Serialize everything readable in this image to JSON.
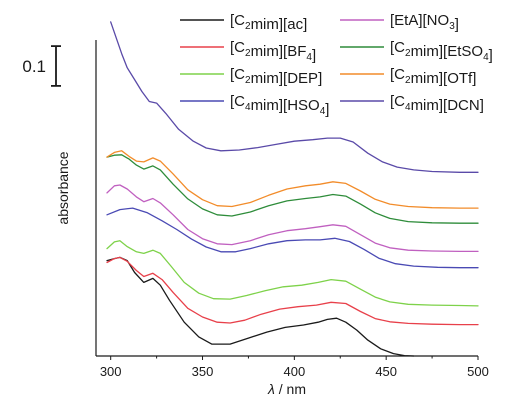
{
  "chart_data": {
    "type": "line",
    "title": "",
    "xlabel": {
      "symbol": "λ",
      "unit": " / nm"
    },
    "ylabel": "absorbance",
    "xlim": [
      292,
      500
    ],
    "xticks": [
      "300",
      "350",
      "400",
      "450",
      "500"
    ],
    "xtick_values": [
      300,
      350,
      400,
      450,
      500
    ],
    "ylim": [
      0,
      0.87
    ],
    "yticks": [],
    "grid": false,
    "legend_position": "top-right",
    "scale_bar": {
      "label": "0.1",
      "value": 0.1
    },
    "series": [
      {
        "name": [
          {
            "t": "[C"
          },
          {
            "t": "2",
            "sub": true
          },
          {
            "t": "mim][ac]"
          }
        ],
        "color": "#1a1a1a",
        "points": [
          [
            298,
            0.24
          ],
          [
            302,
            0.245
          ],
          [
            305,
            0.248
          ],
          [
            309,
            0.24
          ],
          [
            313,
            0.21
          ],
          [
            318,
            0.185
          ],
          [
            323,
            0.195
          ],
          [
            327,
            0.178
          ],
          [
            332,
            0.14
          ],
          [
            340,
            0.085
          ],
          [
            348,
            0.048
          ],
          [
            355,
            0.03
          ],
          [
            365,
            0.03
          ],
          [
            375,
            0.045
          ],
          [
            385,
            0.06
          ],
          [
            395,
            0.072
          ],
          [
            405,
            0.078
          ],
          [
            413,
            0.085
          ],
          [
            418,
            0.092
          ],
          [
            423,
            0.095
          ],
          [
            428,
            0.085
          ],
          [
            434,
            0.065
          ],
          [
            440,
            0.04
          ],
          [
            447,
            0.018
          ],
          [
            454,
            0.006
          ],
          [
            460,
            0.001
          ],
          [
            465,
            0.0
          ]
        ]
      },
      {
        "name": [
          {
            "t": "[C"
          },
          {
            "t": "2",
            "sub": true
          },
          {
            "t": "mim][BF"
          },
          {
            "t": "4",
            "sub": true
          },
          {
            "t": "]"
          }
        ],
        "color": "#e8404a",
        "points": [
          [
            298,
            0.235
          ],
          [
            302,
            0.245
          ],
          [
            305,
            0.248
          ],
          [
            309,
            0.238
          ],
          [
            314,
            0.215
          ],
          [
            318,
            0.2
          ],
          [
            323,
            0.208
          ],
          [
            328,
            0.192
          ],
          [
            334,
            0.16
          ],
          [
            342,
            0.12
          ],
          [
            350,
            0.098
          ],
          [
            358,
            0.085
          ],
          [
            365,
            0.083
          ],
          [
            373,
            0.09
          ],
          [
            382,
            0.105
          ],
          [
            392,
            0.118
          ],
          [
            402,
            0.124
          ],
          [
            412,
            0.128
          ],
          [
            420,
            0.135
          ],
          [
            428,
            0.132
          ],
          [
            436,
            0.112
          ],
          [
            444,
            0.094
          ],
          [
            452,
            0.086
          ],
          [
            462,
            0.082
          ],
          [
            475,
            0.08
          ],
          [
            490,
            0.079
          ],
          [
            500,
            0.079
          ]
        ]
      },
      {
        "name": [
          {
            "t": "[C"
          },
          {
            "t": "2",
            "sub": true
          },
          {
            "t": "mim][DEP]"
          }
        ],
        "color": "#7ed24a",
        "points": [
          [
            298,
            0.27
          ],
          [
            302,
            0.287
          ],
          [
            305,
            0.29
          ],
          [
            309,
            0.275
          ],
          [
            314,
            0.262
          ],
          [
            318,
            0.258
          ],
          [
            323,
            0.266
          ],
          [
            327,
            0.258
          ],
          [
            333,
            0.225
          ],
          [
            340,
            0.185
          ],
          [
            348,
            0.158
          ],
          [
            356,
            0.144
          ],
          [
            365,
            0.143
          ],
          [
            374,
            0.152
          ],
          [
            384,
            0.164
          ],
          [
            394,
            0.174
          ],
          [
            404,
            0.178
          ],
          [
            413,
            0.185
          ],
          [
            420,
            0.192
          ],
          [
            428,
            0.188
          ],
          [
            436,
            0.168
          ],
          [
            444,
            0.148
          ],
          [
            452,
            0.136
          ],
          [
            462,
            0.13
          ],
          [
            475,
            0.128
          ],
          [
            490,
            0.127
          ],
          [
            500,
            0.126
          ]
        ]
      },
      {
        "name": [
          {
            "t": "[C"
          },
          {
            "t": "4",
            "sub": true
          },
          {
            "t": "mim][HSO"
          },
          {
            "t": "4",
            "sub": true
          },
          {
            "t": "]"
          }
        ],
        "color": "#4a4ab4",
        "points": [
          [
            298,
            0.355
          ],
          [
            305,
            0.368
          ],
          [
            312,
            0.372
          ],
          [
            320,
            0.36
          ],
          [
            328,
            0.34
          ],
          [
            336,
            0.318
          ],
          [
            344,
            0.294
          ],
          [
            352,
            0.274
          ],
          [
            360,
            0.262
          ],
          [
            368,
            0.262
          ],
          [
            376,
            0.27
          ],
          [
            386,
            0.282
          ],
          [
            396,
            0.29
          ],
          [
            406,
            0.292
          ],
          [
            414,
            0.292
          ],
          [
            422,
            0.296
          ],
          [
            430,
            0.288
          ],
          [
            438,
            0.268
          ],
          [
            446,
            0.246
          ],
          [
            455,
            0.232
          ],
          [
            465,
            0.226
          ],
          [
            478,
            0.223
          ],
          [
            490,
            0.222
          ],
          [
            500,
            0.222
          ]
        ]
      },
      {
        "name": [
          {
            "t": "[EtA][NO"
          },
          {
            "t": "3",
            "sub": true
          },
          {
            "t": "]"
          }
        ],
        "color": "#c060c0",
        "points": [
          [
            298,
            0.41
          ],
          [
            302,
            0.428
          ],
          [
            305,
            0.43
          ],
          [
            309,
            0.42
          ],
          [
            314,
            0.4
          ],
          [
            318,
            0.388
          ],
          [
            323,
            0.396
          ],
          [
            327,
            0.385
          ],
          [
            334,
            0.355
          ],
          [
            342,
            0.318
          ],
          [
            350,
            0.295
          ],
          [
            358,
            0.282
          ],
          [
            366,
            0.28
          ],
          [
            376,
            0.29
          ],
          [
            386,
            0.305
          ],
          [
            396,
            0.315
          ],
          [
            406,
            0.32
          ],
          [
            414,
            0.325
          ],
          [
            421,
            0.33
          ],
          [
            428,
            0.326
          ],
          [
            436,
            0.305
          ],
          [
            444,
            0.284
          ],
          [
            452,
            0.272
          ],
          [
            462,
            0.266
          ],
          [
            475,
            0.264
          ],
          [
            490,
            0.263
          ],
          [
            500,
            0.263
          ]
        ]
      },
      {
        "name": [
          {
            "t": "[C"
          },
          {
            "t": "2",
            "sub": true
          },
          {
            "t": "mim][EtSO"
          },
          {
            "t": "4",
            "sub": true
          },
          {
            "t": "]"
          }
        ],
        "color": "#2e8c3a",
        "points": [
          [
            298,
            0.5
          ],
          [
            302,
            0.505
          ],
          [
            306,
            0.506
          ],
          [
            310,
            0.495
          ],
          [
            314,
            0.48
          ],
          [
            318,
            0.47
          ],
          [
            323,
            0.478
          ],
          [
            327,
            0.468
          ],
          [
            334,
            0.432
          ],
          [
            342,
            0.395
          ],
          [
            350,
            0.37
          ],
          [
            358,
            0.355
          ],
          [
            366,
            0.352
          ],
          [
            376,
            0.362
          ],
          [
            386,
            0.378
          ],
          [
            396,
            0.39
          ],
          [
            406,
            0.396
          ],
          [
            414,
            0.4
          ],
          [
            421,
            0.406
          ],
          [
            428,
            0.402
          ],
          [
            436,
            0.382
          ],
          [
            444,
            0.36
          ],
          [
            452,
            0.346
          ],
          [
            462,
            0.338
          ],
          [
            475,
            0.335
          ],
          [
            490,
            0.334
          ],
          [
            500,
            0.334
          ]
        ]
      },
      {
        "name": [
          {
            "t": "[C"
          },
          {
            "t": "2",
            "sub": true
          },
          {
            "t": "mim][OTf]"
          }
        ],
        "color": "#f28c2a",
        "points": [
          [
            298,
            0.5
          ],
          [
            302,
            0.512
          ],
          [
            306,
            0.516
          ],
          [
            310,
            0.502
          ],
          [
            314,
            0.49
          ],
          [
            318,
            0.488
          ],
          [
            323,
            0.498
          ],
          [
            327,
            0.49
          ],
          [
            334,
            0.458
          ],
          [
            342,
            0.418
          ],
          [
            350,
            0.393
          ],
          [
            358,
            0.378
          ],
          [
            366,
            0.376
          ],
          [
            376,
            0.386
          ],
          [
            386,
            0.404
          ],
          [
            396,
            0.42
          ],
          [
            406,
            0.428
          ],
          [
            414,
            0.432
          ],
          [
            421,
            0.438
          ],
          [
            428,
            0.434
          ],
          [
            436,
            0.415
          ],
          [
            444,
            0.394
          ],
          [
            452,
            0.382
          ],
          [
            462,
            0.376
          ],
          [
            475,
            0.373
          ],
          [
            490,
            0.372
          ],
          [
            500,
            0.372
          ]
        ]
      },
      {
        "name": [
          {
            "t": "[C"
          },
          {
            "t": "4",
            "sub": true
          },
          {
            "t": "mim][DCN]"
          }
        ],
        "color": "#5a4aa8",
        "points": [
          [
            300,
            0.84
          ],
          [
            303,
            0.8
          ],
          [
            306,
            0.76
          ],
          [
            309,
            0.725
          ],
          [
            313,
            0.695
          ],
          [
            317,
            0.665
          ],
          [
            321,
            0.64
          ],
          [
            325,
            0.636
          ],
          [
            330,
            0.61
          ],
          [
            337,
            0.57
          ],
          [
            345,
            0.54
          ],
          [
            352,
            0.523
          ],
          [
            360,
            0.516
          ],
          [
            370,
            0.518
          ],
          [
            380,
            0.524
          ],
          [
            390,
            0.532
          ],
          [
            400,
            0.54
          ],
          [
            410,
            0.544
          ],
          [
            418,
            0.548
          ],
          [
            425,
            0.548
          ],
          [
            432,
            0.538
          ],
          [
            440,
            0.51
          ],
          [
            448,
            0.488
          ],
          [
            456,
            0.475
          ],
          [
            465,
            0.468
          ],
          [
            475,
            0.464
          ],
          [
            490,
            0.462
          ],
          [
            500,
            0.462
          ]
        ]
      }
    ]
  }
}
